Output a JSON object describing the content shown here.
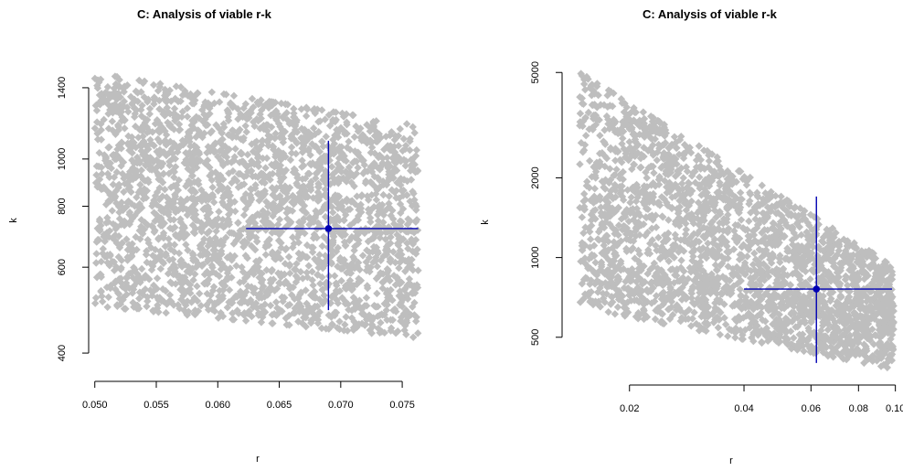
{
  "chart_data": [
    {
      "type": "scatter",
      "title": "C: Analysis of viable r-k",
      "xlabel": "r",
      "ylabel": "k",
      "x_scale": "linear",
      "y_scale": "log",
      "xlim": [
        0.0495,
        0.077
      ],
      "ylim": [
        350,
        1600
      ],
      "x_ticks": [
        0.05,
        0.055,
        0.06,
        0.065,
        0.07,
        0.075
      ],
      "x_tick_labels": [
        "0.050",
        "0.055",
        "0.060",
        "0.065",
        "0.070",
        "0.075"
      ],
      "y_ticks": [
        400,
        600,
        800,
        1000,
        1400
      ],
      "y_tick_labels": [
        "400",
        "600",
        "800",
        "1000",
        "1400"
      ],
      "point_color": "#bebebe",
      "estimate_color": "#0000b3",
      "cloud": {
        "r_range": [
          0.05,
          0.0763
        ],
        "k_upper": [
          [
            0.05,
            1500
          ],
          [
            0.0763,
            1170
          ]
        ],
        "k_lower": [
          [
            0.05,
            500
          ],
          [
            0.0763,
            430
          ]
        ]
      },
      "estimate": {
        "r": 0.069,
        "k": 720,
        "r_ci": [
          0.0623,
          0.0763
        ],
        "k_ci": [
          490,
          1090
        ]
      }
    },
    {
      "type": "scatter",
      "title": "C: Analysis of viable r-k",
      "xlabel": "r",
      "ylabel": "k",
      "x_scale": "log",
      "y_scale": "log",
      "xlim": [
        0.0133,
        0.103
      ],
      "ylim": [
        330,
        5600
      ],
      "x_ticks": [
        0.02,
        0.04,
        0.06,
        0.08,
        0.1
      ],
      "x_tick_labels": [
        "0.02",
        "0.04",
        "0.06",
        "0.08",
        "0.10"
      ],
      "y_ticks": [
        500,
        1000,
        2000,
        5000
      ],
      "y_tick_labels": [
        "500",
        "1000",
        "2000",
        "5000"
      ],
      "point_color": "#bebebe",
      "estimate_color": "#0000b3",
      "cloud": {
        "r_range": [
          0.0148,
          0.099
        ],
        "k_upper": [
          [
            0.0148,
            5000
          ],
          [
            0.099,
            930
          ]
        ],
        "k_lower": [
          [
            0.0148,
            650
          ],
          [
            0.099,
            380
          ]
        ]
      },
      "estimate": {
        "r": 0.062,
        "k": 760,
        "r_ci": [
          0.04,
          0.098
        ],
        "k_ci": [
          400,
          1700
        ]
      }
    }
  ]
}
